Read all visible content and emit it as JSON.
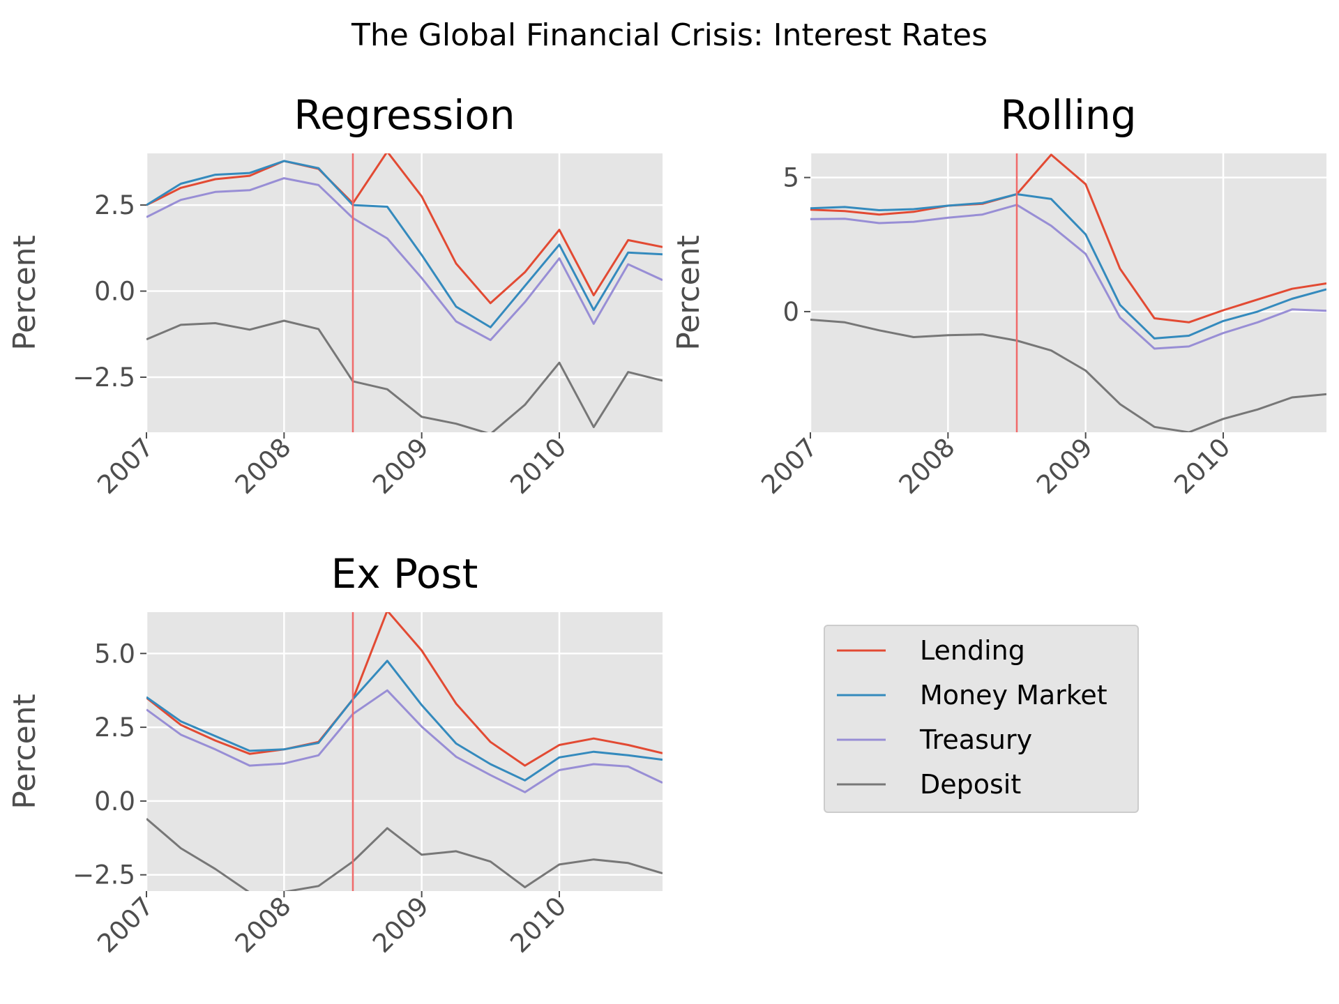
{
  "figure_title": "The Global Financial Crisis: Interest Rates",
  "colors": {
    "Lending": "#E24A33",
    "Money Market": "#348ABD",
    "Treasury": "#988ED5",
    "Deposit": "#777777",
    "event_line": "#F06A6A",
    "panel_bg": "#E5E5E5",
    "grid": "#FFFFFF"
  },
  "legend": {
    "position": "lower-right",
    "entries": [
      "Lending",
      "Money Market",
      "Treasury",
      "Deposit"
    ]
  },
  "chart_data": [
    {
      "type": "line",
      "title": "Regression",
      "ylabel": "Percent",
      "xlabel": "",
      "x": [
        2007.0,
        2007.25,
        2007.5,
        2007.75,
        2008.0,
        2008.25,
        2008.5,
        2008.75,
        2009.0,
        2009.25,
        2009.5,
        2009.75,
        2010.0,
        2010.25,
        2010.5,
        2010.75
      ],
      "xlim": [
        2007.0,
        2010.75
      ],
      "ylim": [
        -4.1,
        4.0
      ],
      "xticks": [
        2007,
        2008,
        2009,
        2010
      ],
      "xtick_labels": [
        "2007",
        "2008",
        "2009",
        "2010"
      ],
      "yticks": [
        -2.5,
        0.0,
        2.5
      ],
      "ytick_labels": [
        "−2.5",
        "0.0",
        "2.5"
      ],
      "event_x": 2008.5,
      "grid": true,
      "series": [
        {
          "name": "Lending",
          "values": [
            2.5,
            3.0,
            3.25,
            3.35,
            3.78,
            3.55,
            2.55,
            4.05,
            2.75,
            0.8,
            -0.35,
            0.55,
            1.78,
            -0.12,
            1.48,
            1.28
          ]
        },
        {
          "name": "Money Market",
          "values": [
            2.5,
            3.12,
            3.38,
            3.43,
            3.78,
            3.57,
            2.5,
            2.45,
            1.05,
            -0.45,
            -1.05,
            0.15,
            1.35,
            -0.55,
            1.12,
            1.07
          ]
        },
        {
          "name": "Treasury",
          "values": [
            2.15,
            2.65,
            2.88,
            2.93,
            3.28,
            3.08,
            2.12,
            1.53,
            0.38,
            -0.88,
            -1.42,
            -0.32,
            0.95,
            -0.95,
            0.78,
            0.32
          ]
        },
        {
          "name": "Deposit",
          "values": [
            -1.4,
            -0.98,
            -0.93,
            -1.12,
            -0.86,
            -1.1,
            -2.62,
            -2.85,
            -3.65,
            -3.85,
            -4.15,
            -3.3,
            -2.08,
            -3.95,
            -2.35,
            -2.6
          ]
        }
      ]
    },
    {
      "type": "line",
      "title": "Rolling",
      "ylabel": "Percent",
      "xlabel": "",
      "x": [
        2007.0,
        2007.25,
        2007.5,
        2007.75,
        2008.0,
        2008.25,
        2008.5,
        2008.75,
        2009.0,
        2009.25,
        2009.5,
        2009.75,
        2010.0,
        2010.25,
        2010.5,
        2010.75
      ],
      "xlim": [
        2007.0,
        2010.75
      ],
      "ylim": [
        -4.5,
        5.9
      ],
      "xticks": [
        2007,
        2008,
        2009,
        2010
      ],
      "xtick_labels": [
        "2007",
        "2008",
        "2009",
        "2010"
      ],
      "yticks": [
        0,
        5
      ],
      "ytick_labels": [
        "0",
        "5"
      ],
      "event_x": 2008.5,
      "grid": true,
      "series": [
        {
          "name": "Lending",
          "values": [
            3.8,
            3.75,
            3.62,
            3.72,
            3.95,
            4.02,
            4.38,
            5.85,
            4.75,
            1.6,
            -0.25,
            -0.4,
            0.05,
            0.45,
            0.85,
            1.05
          ]
        },
        {
          "name": "Money Market",
          "values": [
            3.85,
            3.9,
            3.78,
            3.82,
            3.95,
            4.05,
            4.38,
            4.2,
            2.88,
            0.25,
            -1.0,
            -0.9,
            -0.35,
            0.0,
            0.48,
            0.83
          ]
        },
        {
          "name": "Treasury",
          "values": [
            3.45,
            3.46,
            3.3,
            3.35,
            3.5,
            3.62,
            3.98,
            3.2,
            2.15,
            -0.22,
            -1.38,
            -1.3,
            -0.8,
            -0.4,
            0.08,
            0.03
          ]
        },
        {
          "name": "Deposit",
          "values": [
            -0.3,
            -0.4,
            -0.7,
            -0.95,
            -0.88,
            -0.85,
            -1.08,
            -1.45,
            -2.2,
            -3.45,
            -4.3,
            -4.5,
            -4.0,
            -3.65,
            -3.2,
            -3.08
          ]
        }
      ]
    },
    {
      "type": "line",
      "title": "Ex Post",
      "ylabel": "Percent",
      "xlabel": "",
      "x": [
        2007.0,
        2007.25,
        2007.5,
        2007.75,
        2008.0,
        2008.25,
        2008.5,
        2008.75,
        2009.0,
        2009.25,
        2009.5,
        2009.75,
        2010.0,
        2010.25,
        2010.5,
        2010.75
      ],
      "xlim": [
        2007.0,
        2010.75
      ],
      "ylim": [
        -3.05,
        6.4
      ],
      "xticks": [
        2007,
        2008,
        2009,
        2010
      ],
      "xtick_labels": [
        "2007",
        "2008",
        "2009",
        "2010"
      ],
      "yticks": [
        -2.5,
        0.0,
        2.5,
        5.0
      ],
      "ytick_labels": [
        "−2.5",
        "0.0",
        "2.5",
        "5.0"
      ],
      "event_x": 2008.5,
      "grid": true,
      "series": [
        {
          "name": "Lending",
          "values": [
            3.5,
            2.58,
            2.05,
            1.6,
            1.75,
            2.0,
            3.45,
            6.45,
            5.1,
            3.3,
            2.0,
            1.2,
            1.9,
            2.12,
            1.9,
            1.62
          ]
        },
        {
          "name": "Money Market",
          "values": [
            3.52,
            2.7,
            2.2,
            1.7,
            1.75,
            1.97,
            3.45,
            4.75,
            3.25,
            1.95,
            1.25,
            0.7,
            1.48,
            1.67,
            1.55,
            1.4
          ]
        },
        {
          "name": "Treasury",
          "values": [
            3.1,
            2.25,
            1.75,
            1.2,
            1.27,
            1.55,
            2.95,
            3.75,
            2.52,
            1.5,
            0.88,
            0.3,
            1.05,
            1.25,
            1.17,
            0.62
          ]
        },
        {
          "name": "Deposit",
          "values": [
            -0.6,
            -1.6,
            -2.3,
            -3.1,
            -3.08,
            -2.88,
            -2.05,
            -0.92,
            -1.82,
            -1.7,
            -2.05,
            -2.92,
            -2.15,
            -1.98,
            -2.1,
            -2.45
          ]
        }
      ]
    }
  ]
}
